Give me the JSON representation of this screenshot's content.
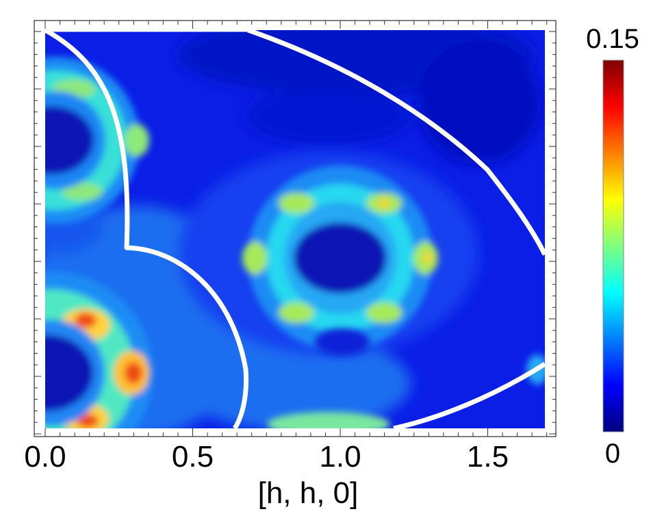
{
  "chart_data": {
    "type": "heatmap",
    "title": "",
    "xlabel": "[h, h, 0]",
    "ylabel": "",
    "xlim": [
      -0.02,
      1.78
    ],
    "xticks": [
      {
        "value": 0.0,
        "label": "0.0"
      },
      {
        "value": 0.5,
        "label": "0.5"
      },
      {
        "value": 1.0,
        "label": "1.0"
      },
      {
        "value": 1.5,
        "label": "1.5"
      }
    ],
    "yticks_labeled": false,
    "grid": false,
    "colormap": "jet",
    "colorbar": {
      "min": 0,
      "max": 0.15,
      "min_label": "0",
      "max_label": "0.15",
      "stops": [
        "#00007f",
        "#0000ff",
        "#007fff",
        "#00ffff",
        "#7fff7f",
        "#ffff00",
        "#ff7f00",
        "#ff0000",
        "#7f0000"
      ]
    },
    "features": [
      {
        "name": "hexagonal ring",
        "center_x": 1.0,
        "peak_value": 0.09,
        "petals": 6
      },
      {
        "name": "ring at origin, upper",
        "center_x": 0.0,
        "peak_value": 0.07
      },
      {
        "name": "ring at origin, lower",
        "center_x": 0.0,
        "peak_value": 0.13
      }
    ],
    "overlays": [
      {
        "name": "inner zone boundary",
        "color": "#ffffff"
      },
      {
        "name": "outer zone boundary",
        "color": "#ffffff"
      }
    ]
  }
}
